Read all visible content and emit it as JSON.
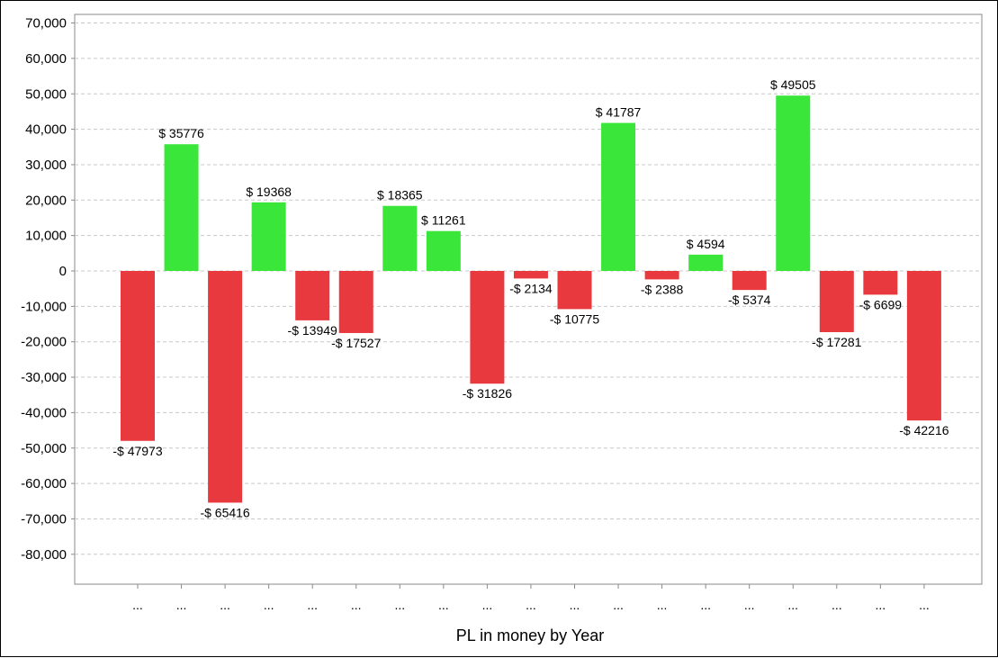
{
  "chart_data": {
    "type": "bar",
    "title": "",
    "xlabel": "PL in money by Year",
    "ylabel": "",
    "ylim": [
      -89000,
      72000
    ],
    "yticks": [
      70000,
      60000,
      50000,
      40000,
      30000,
      20000,
      10000,
      0,
      -10000,
      -20000,
      -30000,
      -40000,
      -50000,
      -60000,
      -70000,
      -80000
    ],
    "ytick_labels": [
      "70,000",
      "60,000",
      "50,000",
      "40,000",
      "30,000",
      "20,000",
      "10,000",
      "0",
      "-10,000",
      "-20,000",
      "-30,000",
      "-40,000",
      "-50,000",
      "-60,000",
      "-70,000",
      "-80,000"
    ],
    "categories": [
      "...",
      "...",
      "...",
      "...",
      "...",
      "...",
      "...",
      "...",
      "...",
      "...",
      "...",
      "...",
      "...",
      "...",
      "...",
      "...",
      "...",
      "...",
      "..."
    ],
    "values": [
      -47973,
      35776,
      -65416,
      19368,
      -13949,
      -17527,
      18365,
      11261,
      -31826,
      -2134,
      -10775,
      41787,
      -2388,
      4594,
      -5374,
      49505,
      -17281,
      -6699,
      -42216
    ],
    "data_labels": [
      "-$ 47973",
      "$ 35776",
      "-$ 65416",
      "$ 19368",
      "-$ 13949",
      "-$ 17527",
      "$ 18365",
      "$ 11261",
      "-$ 31826",
      "-$ 2134",
      "-$ 10775",
      "$ 41787",
      "-$ 2388",
      "$ 4594",
      "-$ 5374",
      "$ 49505",
      "-$ 17281",
      "-$ 6699",
      "-$ 42216"
    ],
    "grid": true,
    "legend": "none",
    "colors": {
      "positive": "#3be63b",
      "negative": "#e8393f",
      "grid": "#c8c8c8",
      "axis": "#888888"
    }
  }
}
